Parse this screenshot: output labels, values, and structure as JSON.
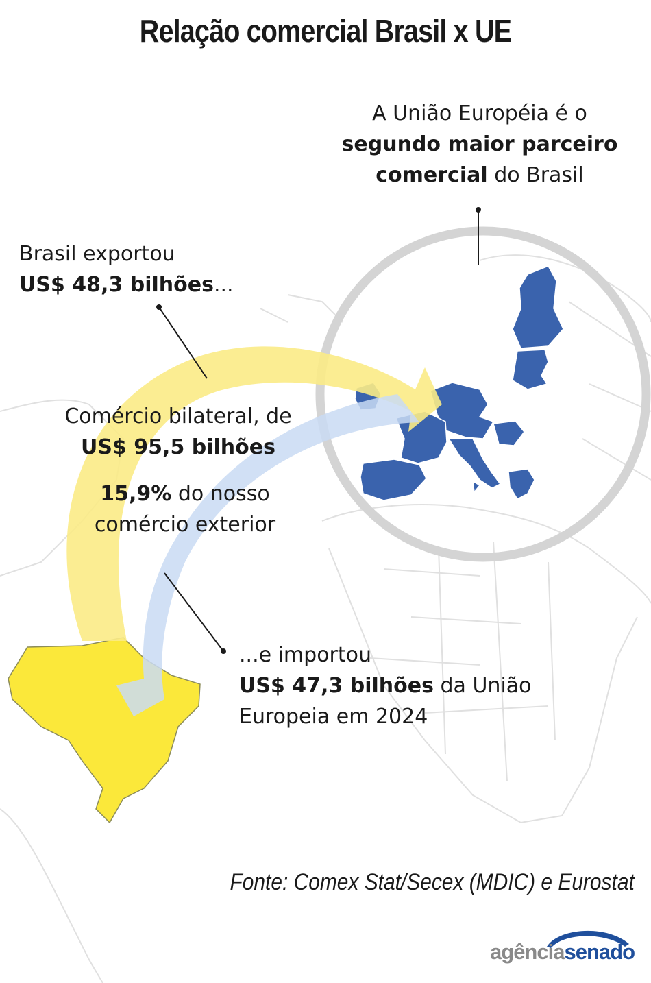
{
  "title": "Relação comercial Brasil x UE",
  "eu_note": {
    "line1": "A União Européia é o",
    "bold": "segundo maior parceiro comercial",
    "rest": " do Brasil"
  },
  "export_note": {
    "line1": "Brasil exportou",
    "bold": "US$ 48,3 bilhões",
    "rest": "..."
  },
  "bilateral_note": {
    "line1": "Comércio bilateral, de",
    "bold": "US$ 95,5 bilhões"
  },
  "share_note": {
    "bold": "15,9%",
    "rest": " do nosso comércio exterior"
  },
  "import_note": {
    "line1": "...e importou",
    "bold": "US$ 47,3 bilhões",
    "rest": " da União Europeia em 2024"
  },
  "source": "Fonte: Comex Stat/Secex (MDIC) e Eurostat",
  "logo": {
    "part1": "agência",
    "part2": "senado"
  },
  "colors": {
    "brazil": "#fbe83a",
    "eu": "#3a63ad",
    "export_arrow": "#fbeb86",
    "import_arrow": "#c9daf3",
    "highlight_circle": "#d4d4d4",
    "map_outline": "#e3e3e3"
  }
}
